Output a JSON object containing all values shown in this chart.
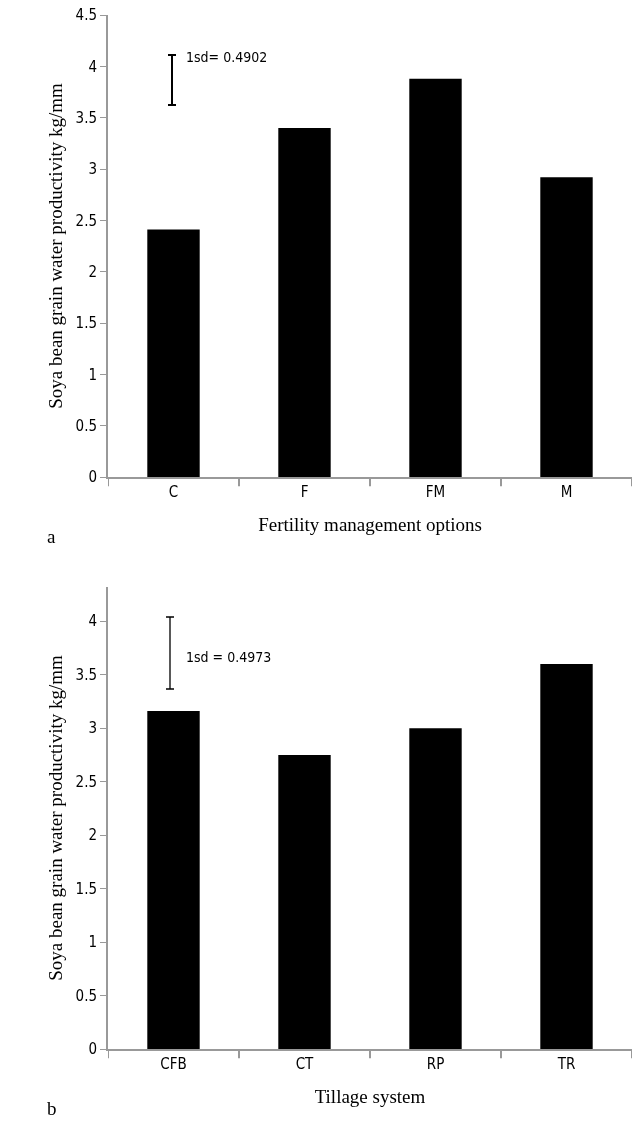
{
  "chart_data": [
    {
      "type": "bar",
      "categories": [
        "C",
        "F",
        "FM",
        "M"
      ],
      "values": [
        2.41,
        3.4,
        3.88,
        2.92
      ],
      "color": "#000000",
      "xlabel": "Fertility management options",
      "ylabel": "Soya bean grain water productivity kg/mm",
      "ylim": [
        0,
        4.5
      ],
      "yticks": [
        0,
        0.5,
        1,
        1.5,
        2,
        2.5,
        3,
        3.5,
        4,
        4.5
      ],
      "grid": false,
      "legend": false,
      "annotations": [
        "1sd= 0.4902",
        "a"
      ]
    },
    {
      "type": "bar",
      "categories": [
        "CFB",
        "CT",
        "RP",
        "TR"
      ],
      "values": [
        3.16,
        2.75,
        3.0,
        3.6
      ],
      "color": "#000000",
      "xlabel": "Tillage system",
      "ylabel": "Soya bean grain water productivity kg/mm",
      "ylim": [
        0,
        4.32
      ],
      "yticks": [
        0,
        0.5,
        1,
        1.5,
        2,
        2.5,
        3,
        3.5,
        4
      ],
      "grid": false,
      "legend": false,
      "annotations": [
        "1sd = 0.4973",
        "b"
      ]
    }
  ]
}
